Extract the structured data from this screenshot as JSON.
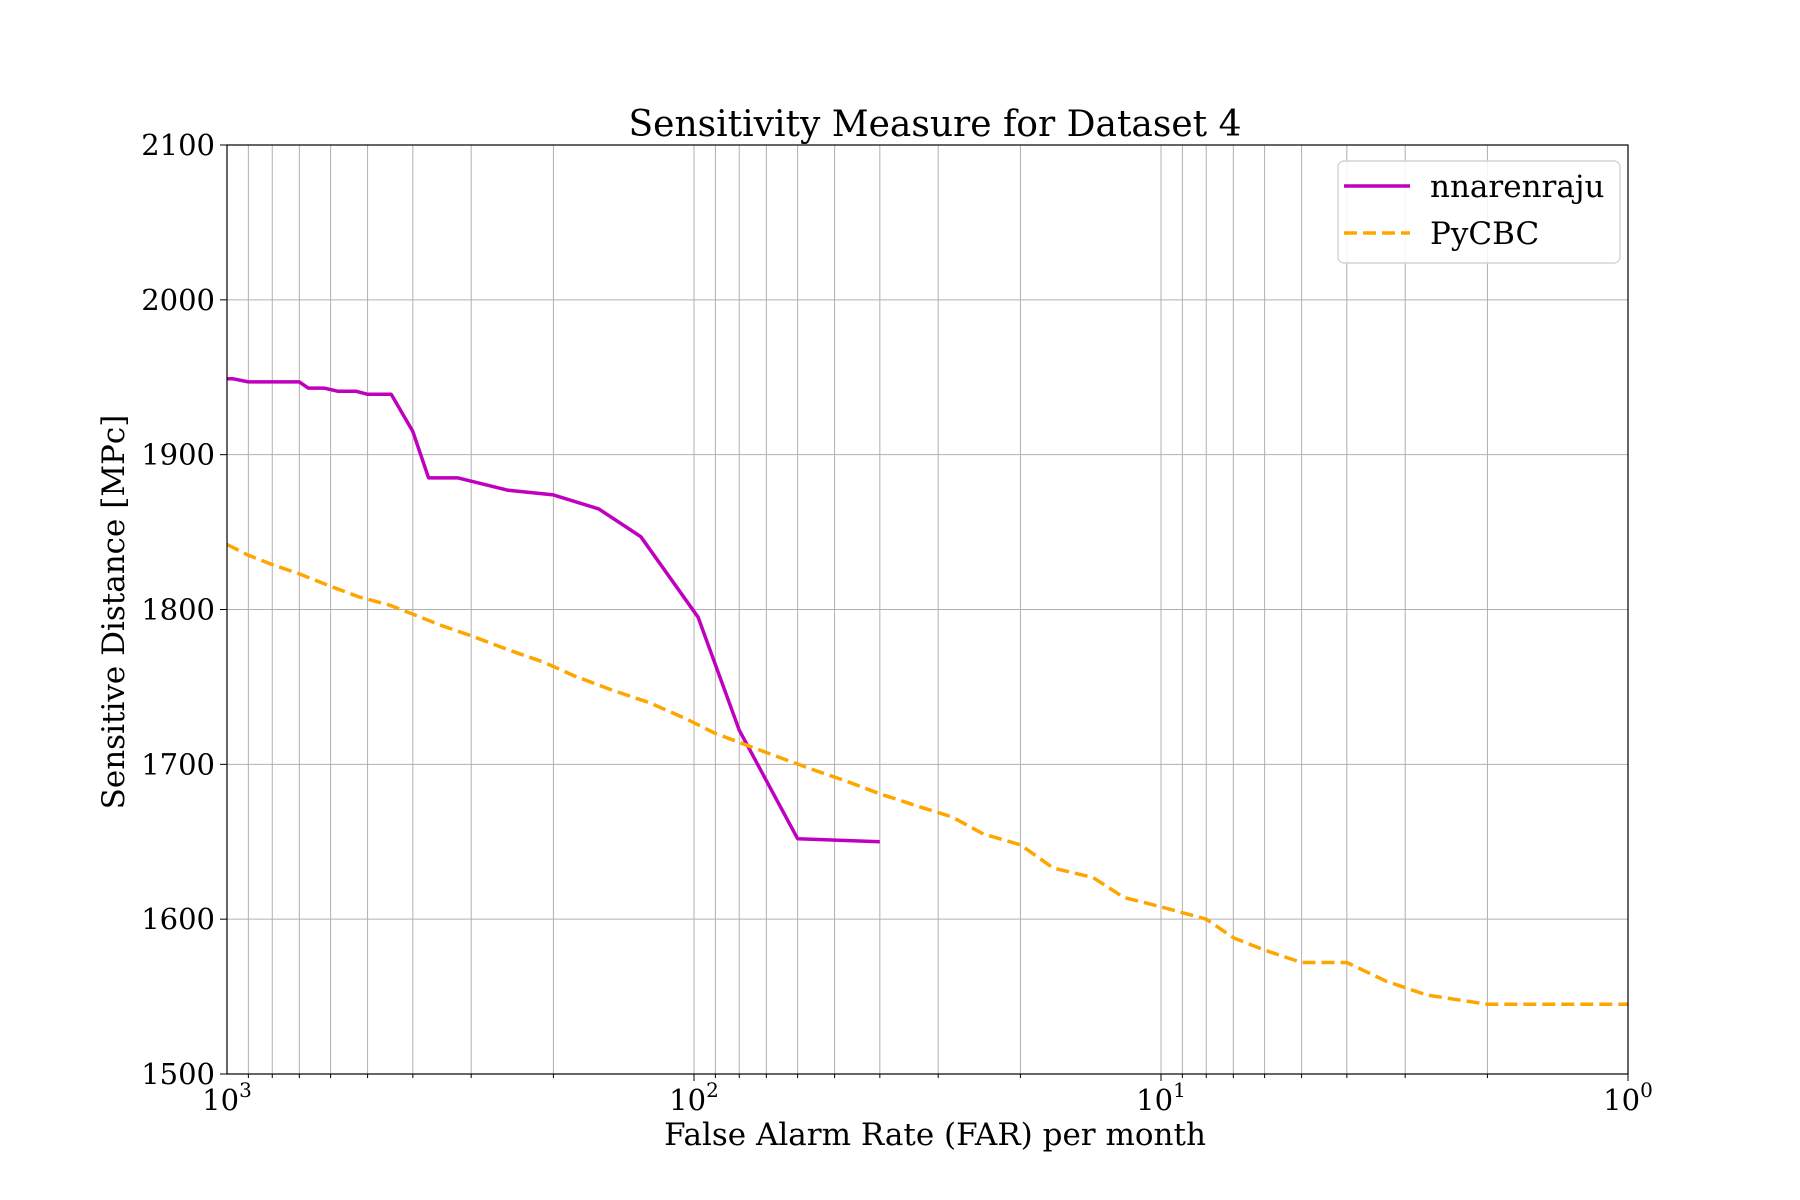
{
  "chart_data": {
    "type": "line",
    "title": "Sensitivity Measure for Dataset 4",
    "xlabel": "False Alarm Rate (FAR) per month",
    "ylabel": "Sensitive Distance [MPc]",
    "x_scale": "log",
    "x_reversed": true,
    "xlim": [
      1000,
      1
    ],
    "ylim": [
      1500,
      2100
    ],
    "grid": true,
    "legend_position": "upper right",
    "x_ticks": [
      {
        "value": 1000,
        "base": "10",
        "exp": "3"
      },
      {
        "value": 100,
        "base": "10",
        "exp": "2"
      },
      {
        "value": 10,
        "base": "10",
        "exp": "1"
      },
      {
        "value": 1,
        "base": "10",
        "exp": "0"
      }
    ],
    "y_ticks": [
      "1500",
      "1600",
      "1700",
      "1800",
      "1900",
      "2000",
      "2100"
    ],
    "series": [
      {
        "name": "nnarenraju",
        "color": "#bf00bf",
        "line_style": "solid",
        "points": [
          [
            1000,
            1949
          ],
          [
            970,
            1949
          ],
          [
            900,
            1947
          ],
          [
            700,
            1947
          ],
          [
            670,
            1943
          ],
          [
            620,
            1943
          ],
          [
            580,
            1941
          ],
          [
            530,
            1941
          ],
          [
            500,
            1939
          ],
          [
            445,
            1939
          ],
          [
            400,
            1915
          ],
          [
            370,
            1885
          ],
          [
            320,
            1885
          ],
          [
            250,
            1877
          ],
          [
            200,
            1874
          ],
          [
            160,
            1865
          ],
          [
            130,
            1847
          ],
          [
            98,
            1795
          ],
          [
            80,
            1722
          ],
          [
            60,
            1652
          ],
          [
            40,
            1650
          ]
        ]
      },
      {
        "name": "PyCBC",
        "color": "#ffa500",
        "line_style": "dashed",
        "points": [
          [
            1000,
            1842
          ],
          [
            900,
            1835
          ],
          [
            800,
            1829
          ],
          [
            700,
            1823
          ],
          [
            600,
            1815
          ],
          [
            520,
            1808
          ],
          [
            450,
            1803
          ],
          [
            400,
            1797
          ],
          [
            350,
            1790
          ],
          [
            300,
            1783
          ],
          [
            250,
            1774
          ],
          [
            210,
            1766
          ],
          [
            180,
            1757
          ],
          [
            150,
            1748
          ],
          [
            125,
            1740
          ],
          [
            105,
            1730
          ],
          [
            90,
            1720
          ],
          [
            75,
            1711
          ],
          [
            65,
            1704
          ],
          [
            55,
            1696
          ],
          [
            47,
            1689
          ],
          [
            40,
            1681
          ],
          [
            34,
            1674
          ],
          [
            28,
            1666
          ],
          [
            24,
            1655
          ],
          [
            20,
            1648
          ],
          [
            17,
            1633
          ],
          [
            14,
            1627
          ],
          [
            12,
            1614
          ],
          [
            10,
            1608
          ],
          [
            8,
            1600
          ],
          [
            7,
            1588
          ],
          [
            6,
            1580
          ],
          [
            5,
            1572
          ],
          [
            4,
            1572
          ],
          [
            3.3,
            1560
          ],
          [
            2.7,
            1551
          ],
          [
            2,
            1545
          ],
          [
            1.5,
            1545
          ],
          [
            1,
            1545
          ]
        ]
      }
    ]
  }
}
